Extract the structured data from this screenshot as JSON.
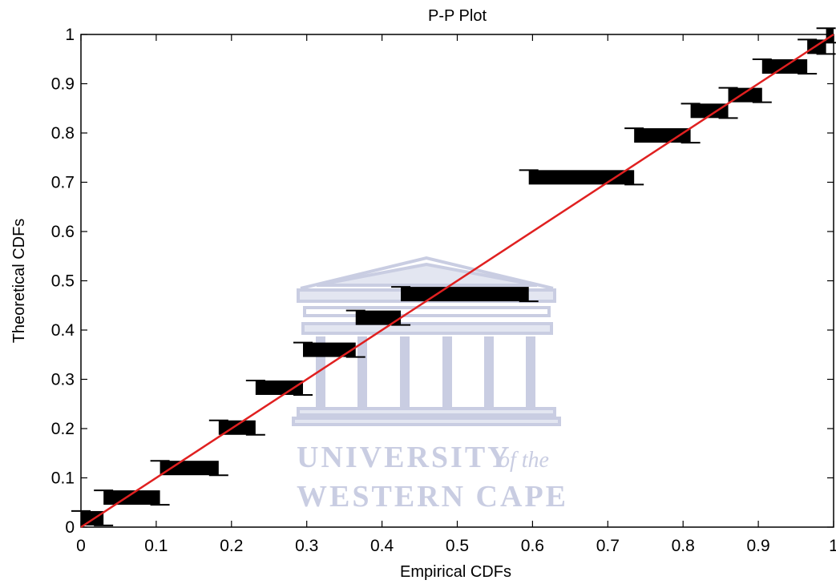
{
  "chart_data": {
    "type": "scatter",
    "title": "P-P Plot",
    "xlabel": "Empirical CDFs",
    "ylabel": "Theoretical CDFs",
    "xlim": [
      0,
      1
    ],
    "ylim": [
      0,
      1
    ],
    "xticks": [
      "0",
      "0.1",
      "0.2",
      "0.3",
      "0.4",
      "0.5",
      "0.6",
      "0.7",
      "0.8",
      "0.9",
      "1"
    ],
    "yticks": [
      "0",
      "0.1",
      "0.2",
      "0.3",
      "0.4",
      "0.5",
      "0.6",
      "0.7",
      "0.8",
      "0.9",
      "1"
    ],
    "grid": false,
    "marker": "plus",
    "marker_color": "#000000",
    "reference_line": {
      "from": [
        0,
        0
      ],
      "to": [
        1,
        1
      ],
      "color": "#e02020"
    },
    "clusters": [
      {
        "x_start": 0.0,
        "x_end": 0.03,
        "y": 0.018
      },
      {
        "x_start": 0.03,
        "x_end": 0.105,
        "y": 0.06
      },
      {
        "x_start": 0.105,
        "x_end": 0.183,
        "y": 0.12
      },
      {
        "x_start": 0.183,
        "x_end": 0.232,
        "y": 0.202
      },
      {
        "x_start": 0.232,
        "x_end": 0.295,
        "y": 0.283
      },
      {
        "x_start": 0.295,
        "x_end": 0.365,
        "y": 0.36
      },
      {
        "x_start": 0.365,
        "x_end": 0.425,
        "y": 0.425
      },
      {
        "x_start": 0.425,
        "x_end": 0.595,
        "y": 0.473
      },
      {
        "x_start": 0.595,
        "x_end": 0.735,
        "y": 0.71
      },
      {
        "x_start": 0.735,
        "x_end": 0.81,
        "y": 0.795
      },
      {
        "x_start": 0.81,
        "x_end": 0.86,
        "y": 0.845
      },
      {
        "x_start": 0.86,
        "x_end": 0.905,
        "y": 0.877
      },
      {
        "x_start": 0.905,
        "x_end": 0.965,
        "y": 0.935
      },
      {
        "x_start": 0.965,
        "x_end": 0.99,
        "y": 0.975
      },
      {
        "x_start": 0.99,
        "x_end": 1.0,
        "y": 0.998
      }
    ]
  },
  "watermark": {
    "line1": "UNIVERSITY",
    "line1_suffix": "of the",
    "line2": "WESTERN CAPE"
  }
}
